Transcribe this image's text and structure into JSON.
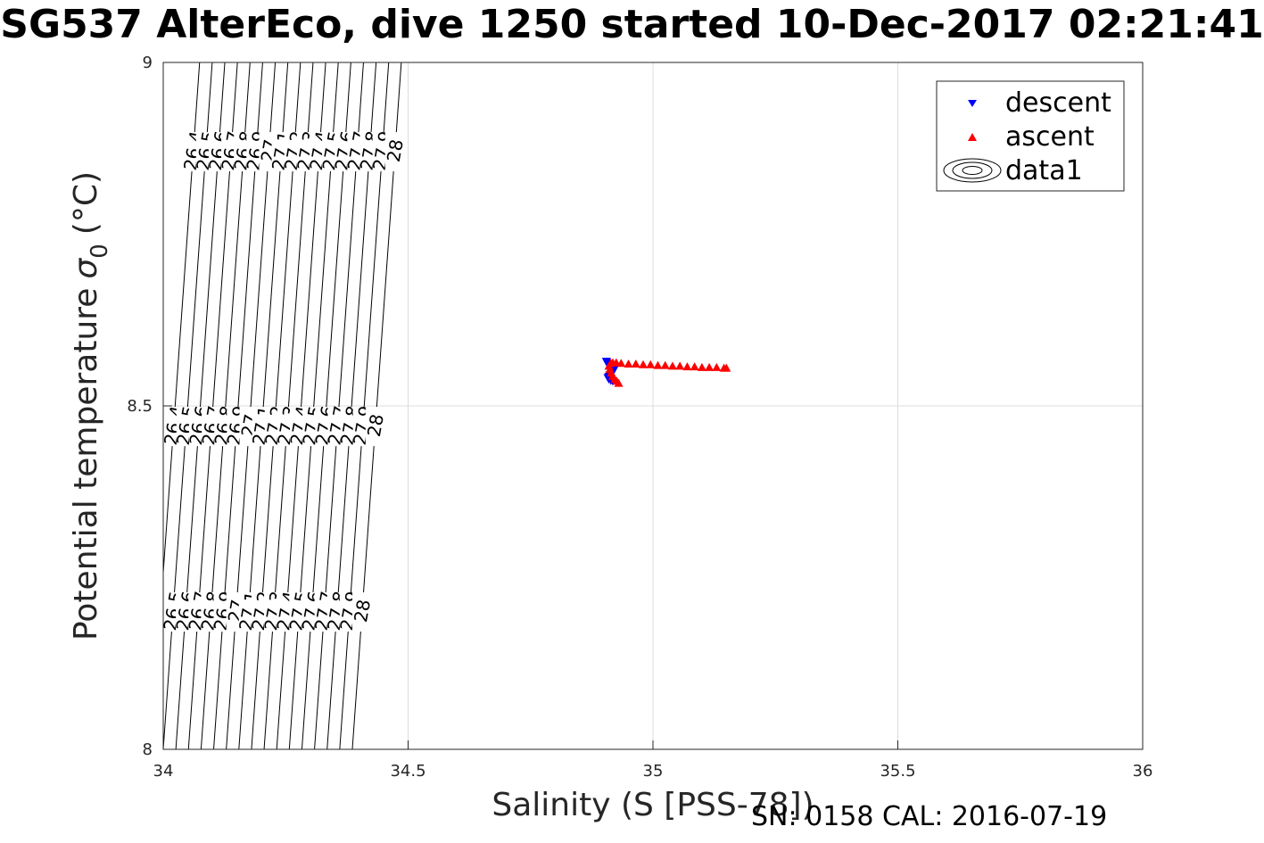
{
  "title": "SG537 AlterEco, dive 1250 started 10-Dec-2017 02:21:41",
  "footer": "SN: 0158  CAL: 2016-07-19",
  "chart_data": {
    "type": "scatter",
    "xlabel": "Salinity (S [PSS-78])",
    "ylabel": "Potential temperature",
    "ylabel_symbol": "σ",
    "ylabel_subscript": "0",
    "ylabel_unit": "(°C)",
    "xlim": [
      34,
      36
    ],
    "ylim": [
      8,
      9
    ],
    "xticks": [
      "34",
      "34.5",
      "35",
      "35.5",
      "36"
    ],
    "yticks": [
      "8",
      "8.5",
      "9"
    ],
    "grid": true,
    "legend_position": "top-right",
    "legend": [
      "descent",
      "ascent",
      "data1"
    ],
    "contour_levels": [
      "26.4",
      "26.5",
      "26.6",
      "26.7",
      "26.8",
      "26.9",
      "27",
      "27.1",
      "27.2",
      "27.3",
      "27.4",
      "27.5",
      "27.6",
      "27.7",
      "27.8",
      "27.9",
      "28"
    ],
    "series": [
      {
        "name": "descent",
        "marker": "triangle-down",
        "color": "#0000ff",
        "x": [
          34.905,
          34.906,
          34.908,
          34.91,
          34.912,
          34.914,
          34.916,
          34.918,
          34.92,
          34.918,
          34.916,
          34.914,
          34.912,
          34.91,
          34.908,
          34.91,
          34.914,
          34.918
        ],
        "y": [
          8.565,
          8.563,
          8.561,
          8.559,
          8.557,
          8.556,
          8.555,
          8.553,
          8.552,
          8.55,
          8.548,
          8.546,
          8.545,
          8.543,
          8.541,
          8.539,
          8.537,
          8.536
        ]
      },
      {
        "name": "ascent",
        "marker": "triangle-up",
        "color": "#ff0000",
        "x": [
          34.93,
          34.926,
          34.922,
          34.918,
          34.915,
          34.912,
          34.91,
          34.914,
          34.918,
          34.925,
          34.935,
          34.95,
          34.965,
          34.98,
          34.995,
          35.01,
          35.025,
          35.04,
          35.055,
          35.07,
          35.085,
          35.1,
          35.115,
          35.13,
          35.145,
          35.15
        ],
        "y": [
          8.533,
          8.536,
          8.539,
          8.543,
          8.548,
          8.553,
          8.558,
          8.562,
          8.563,
          8.563,
          8.562,
          8.561,
          8.561,
          8.56,
          8.56,
          8.559,
          8.559,
          8.558,
          8.558,
          8.557,
          8.557,
          8.556,
          8.556,
          8.556,
          8.555,
          8.555
        ]
      }
    ],
    "colors": {
      "descent": "#0000ff",
      "ascent": "#ff0000",
      "contour": "#000000",
      "grid": "#dcdcdc"
    }
  }
}
